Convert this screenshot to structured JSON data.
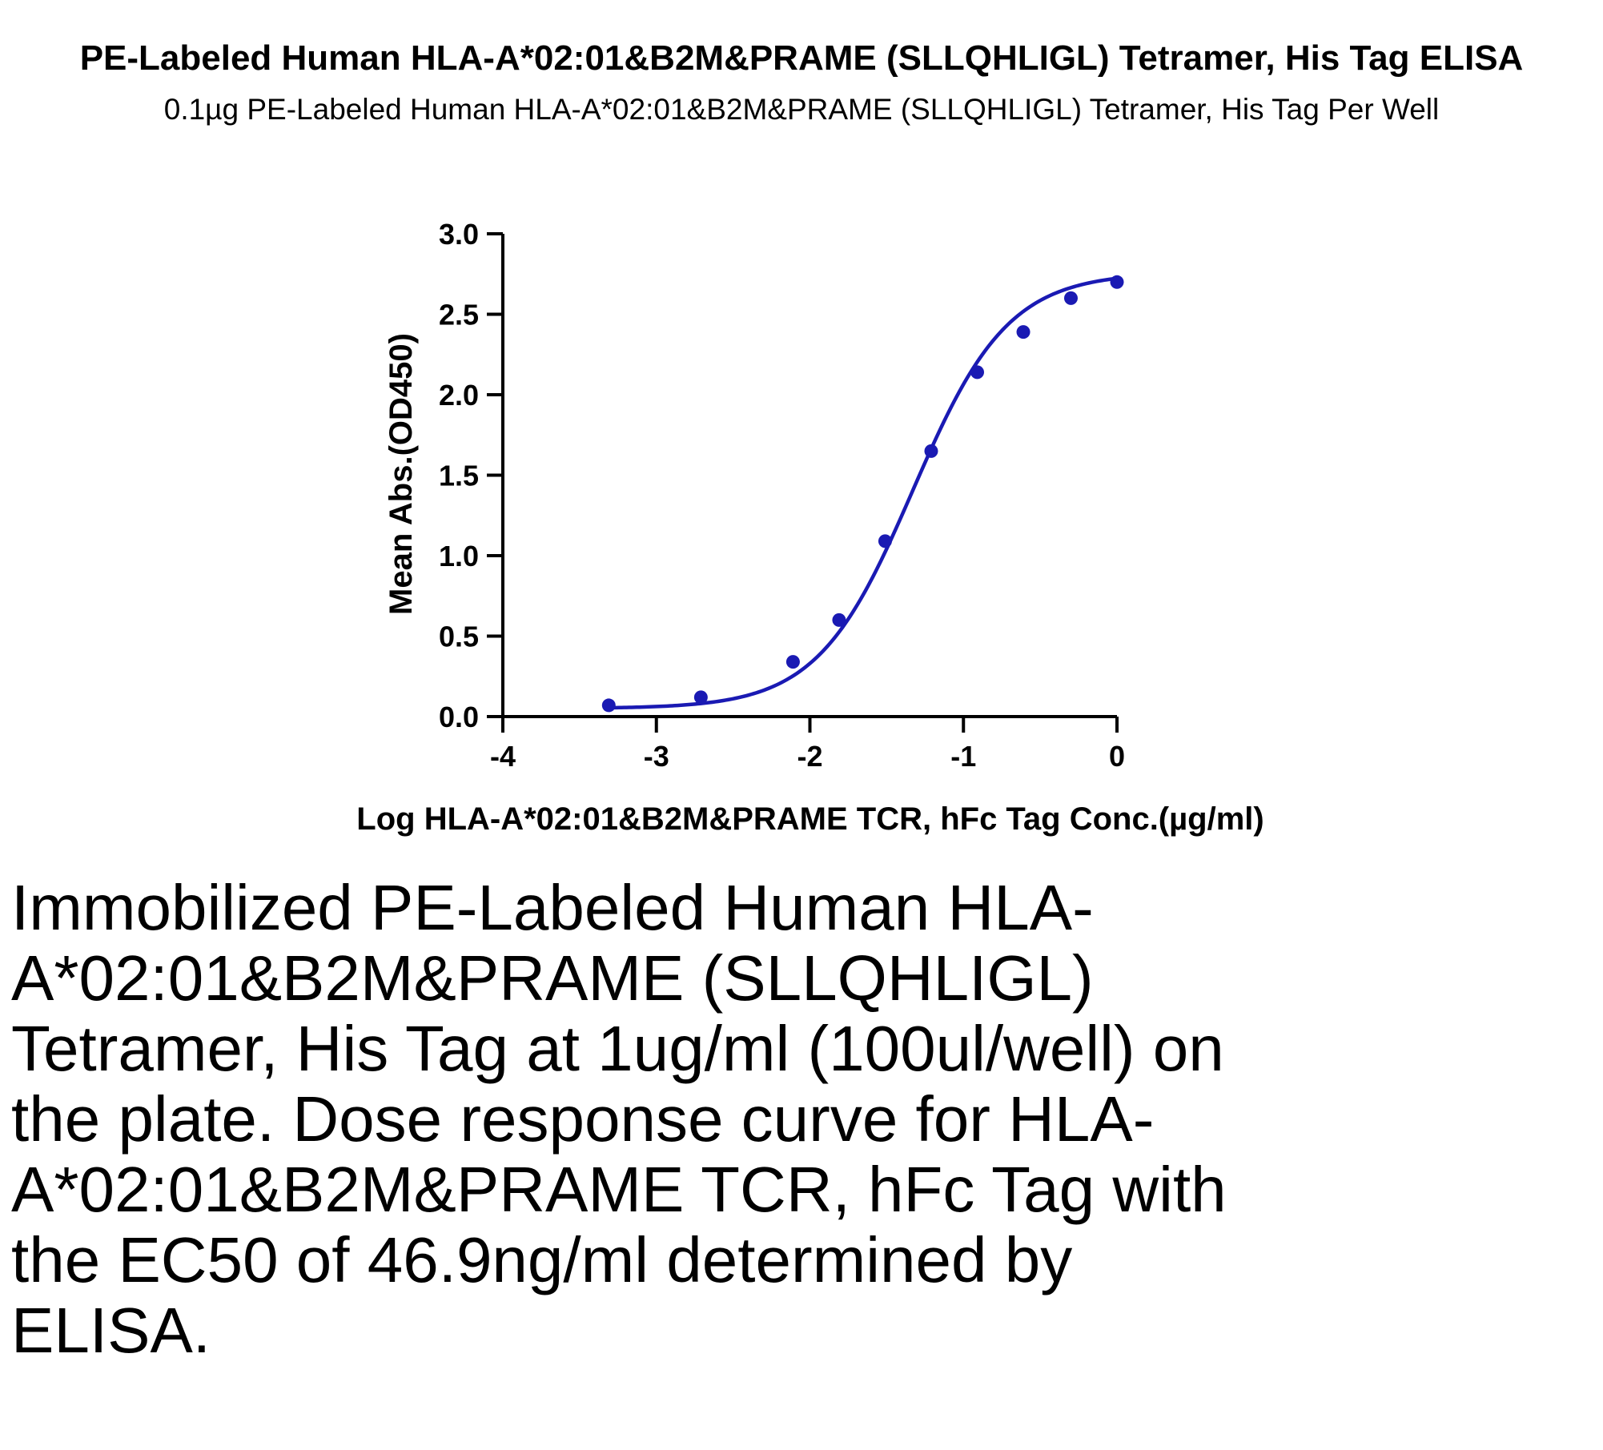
{
  "chart_data": {
    "type": "scatter",
    "title": "PE-Labeled Human HLA-A*02:01&B2M&PRAME (SLLQHLIGL) Tetramer, His Tag ELISA",
    "subtitle": "0.1µg PE-Labeled Human HLA-A*02:01&B2M&PRAME (SLLQHLIGL) Tetramer, His Tag Per Well",
    "xlabel": "Log HLA-A*02:01&B2M&PRAME TCR, hFc Tag Conc.(µg/ml)",
    "ylabel": "Mean Abs.(OD450)",
    "xlim": [
      -4,
      0
    ],
    "ylim": [
      0,
      3
    ],
    "x_ticks": [
      "-4",
      "-3",
      "-2",
      "-1",
      "0"
    ],
    "y_ticks": [
      "0.0",
      "0.5",
      "1.0",
      "1.5",
      "2.0",
      "2.5",
      "3.0"
    ],
    "grid": false,
    "color": "#1a1ab3",
    "series": [
      {
        "x": [
          -3.31,
          -2.71,
          -2.11,
          -1.81,
          -1.51,
          -1.21,
          -0.91,
          -0.61,
          -0.3,
          0.0
        ],
        "y": [
          0.07,
          0.12,
          0.34,
          0.6,
          1.09,
          1.65,
          2.14,
          2.39,
          2.6,
          2.7
        ]
      }
    ],
    "fit_curve": {
      "model": "4PL",
      "bottom": 0.05,
      "top": 2.76,
      "log_ec50": -1.33,
      "hill_slope": 1.4,
      "x_range": [
        -3.31,
        0.0
      ]
    }
  },
  "caption": "Immobilized PE-Labeled Human HLA-A*02:01&B2M&PRAME (SLLQHLIGL) Tetramer, His Tag at 1ug/ml (100ul/well) on the plate. Dose response curve for HLA-A*02:01&B2M&PRAME TCR, hFc Tag with the EC50 of 46.9ng/ml determined by ELISA."
}
